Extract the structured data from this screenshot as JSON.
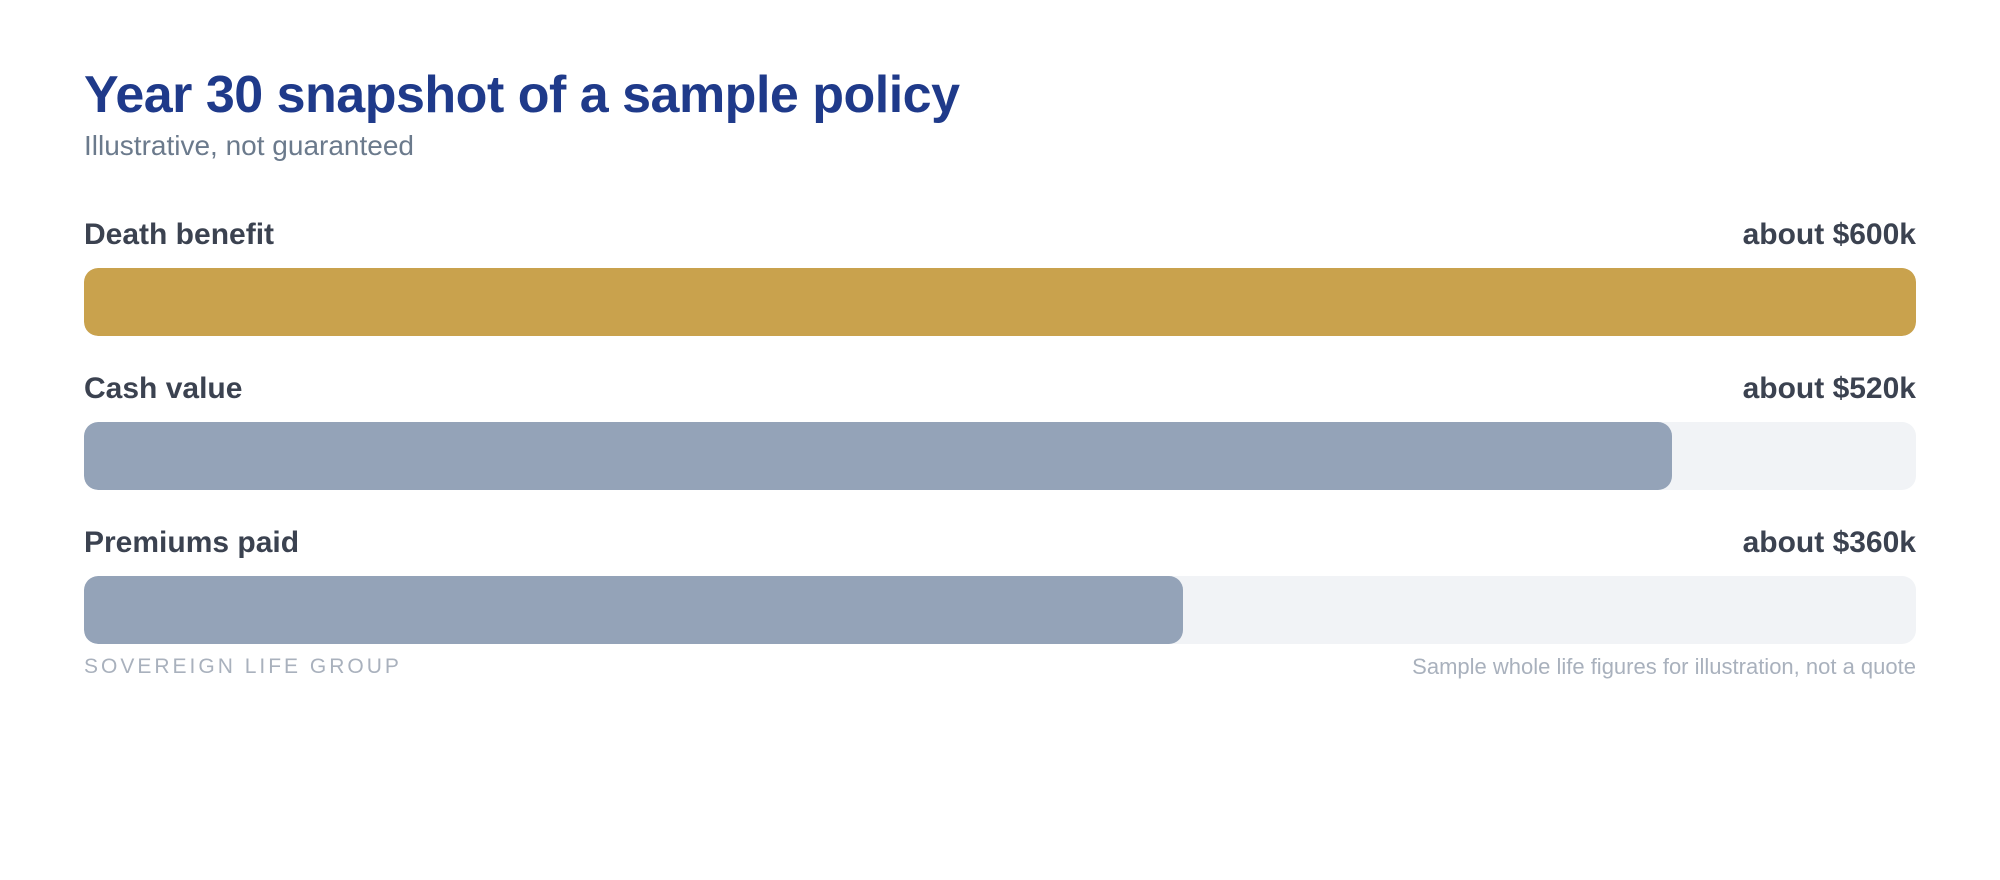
{
  "header": {
    "title": "Year 30 snapshot of a sample policy",
    "subtitle": "Illustrative, not guaranteed"
  },
  "chart_data": {
    "type": "bar",
    "orientation": "horizontal",
    "categories": [
      "Death benefit",
      "Cash value",
      "Premiums paid"
    ],
    "values": [
      600000,
      520000,
      360000
    ],
    "value_labels": [
      "about $600k",
      "about $520k",
      "about $360k"
    ],
    "colors": [
      "#c9a24d",
      "#94a3b8",
      "#94a3b8"
    ],
    "track_color": "#f1f3f6",
    "xlim": [
      0,
      600000
    ],
    "grid": false,
    "legend": "none"
  },
  "footer": {
    "brand": "SOVEREIGN LIFE GROUP",
    "note": "Sample whole life figures for illustration, not a quote"
  }
}
